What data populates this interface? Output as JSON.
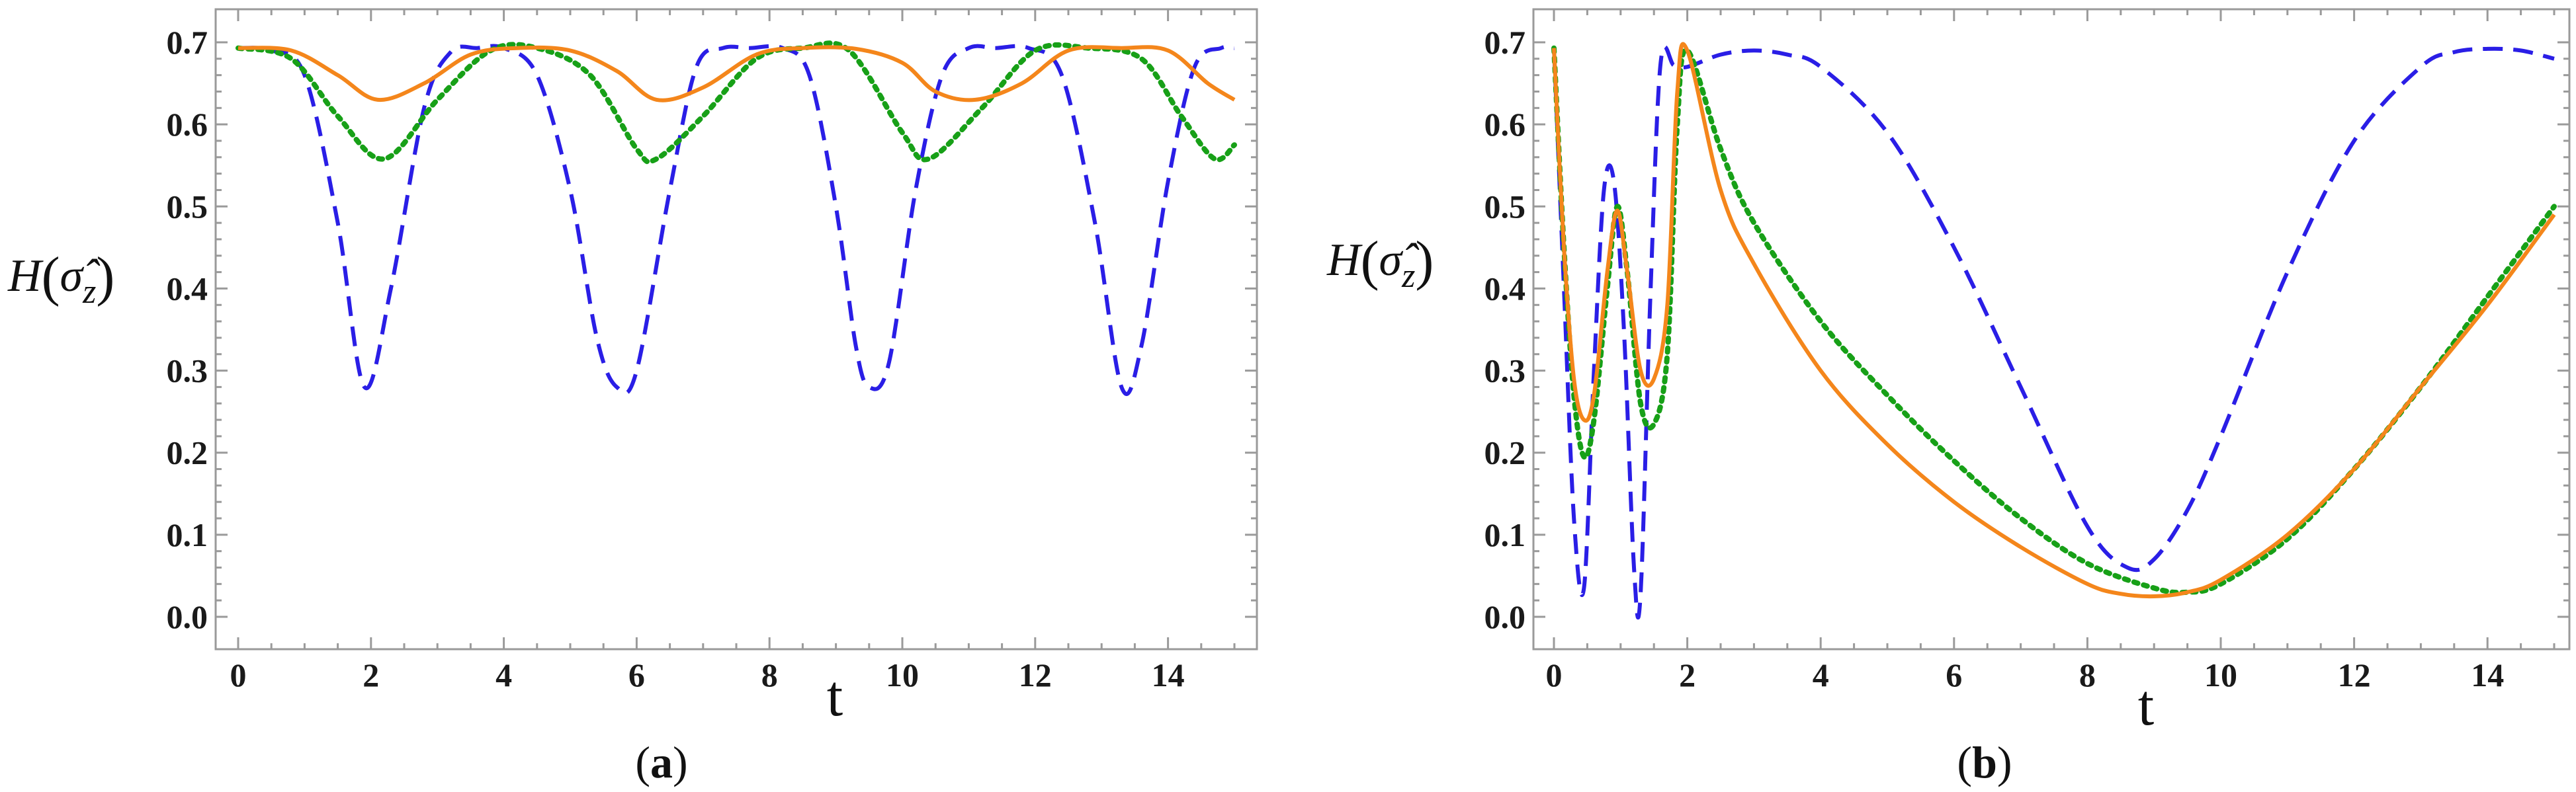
{
  "chart_data": [
    {
      "type": "line",
      "panel": "a",
      "caption": "(a)",
      "caption_letter": "a",
      "xlabel": "t",
      "ylabel": "H(σ̂z)",
      "ylabel_main": "H",
      "ylabel_sigma": "σ̂",
      "ylabel_sub": "z",
      "xlim": [
        0,
        15
      ],
      "ylim": [
        0,
        0.7
      ],
      "xticks": [
        0,
        2,
        4,
        6,
        8,
        10,
        12,
        14
      ],
      "xtick_labels": [
        "0",
        "2",
        "4",
        "6",
        "8",
        "10",
        "12",
        "14"
      ],
      "yticks": [
        0.0,
        0.1,
        0.2,
        0.3,
        0.4,
        0.5,
        0.6,
        0.7
      ],
      "ytick_labels": [
        "0.0",
        "0.1",
        "0.2",
        "0.3",
        "0.4",
        "0.5",
        "0.6",
        "0.7"
      ],
      "series": [
        {
          "name": "dashed-blue",
          "color": "#2a1ee6",
          "style": "dashed",
          "x": [
            0,
            0.5,
            1.0,
            1.5,
            1.9,
            2.3,
            2.8,
            3.2,
            3.6,
            4.0,
            4.5,
            5.0,
            5.4,
            5.7,
            6.0,
            6.5,
            6.9,
            7.3,
            7.7,
            8.2,
            8.6,
            9.0,
            9.3,
            9.5,
            9.8,
            10.2,
            10.6,
            11.0,
            11.4,
            11.9,
            12.4,
            12.9,
            13.3,
            13.6,
            14.0,
            14.4,
            14.8,
            15.0
          ],
          "y": [
            0.693,
            0.69,
            0.66,
            0.48,
            0.28,
            0.4,
            0.62,
            0.688,
            0.693,
            0.693,
            0.66,
            0.52,
            0.34,
            0.28,
            0.3,
            0.52,
            0.67,
            0.693,
            0.693,
            0.693,
            0.66,
            0.5,
            0.33,
            0.28,
            0.31,
            0.52,
            0.66,
            0.693,
            0.693,
            0.693,
            0.66,
            0.48,
            0.28,
            0.33,
            0.53,
            0.67,
            0.693,
            0.693
          ]
        },
        {
          "name": "dotted-green",
          "color": "#17a017",
          "style": "dotted",
          "x": [
            0,
            0.8,
            1.5,
            2.2,
            3.0,
            3.8,
            4.5,
            5.3,
            6.0,
            6.3,
            7.0,
            7.8,
            8.5,
            9.2,
            10.0,
            10.4,
            11.2,
            12.0,
            12.8,
            13.6,
            14.2,
            14.7,
            15.0
          ],
          "y": [
            0.693,
            0.68,
            0.61,
            0.558,
            0.63,
            0.69,
            0.693,
            0.66,
            0.57,
            0.558,
            0.61,
            0.68,
            0.693,
            0.69,
            0.59,
            0.558,
            0.62,
            0.69,
            0.693,
            0.68,
            0.61,
            0.558,
            0.575
          ]
        },
        {
          "name": "solid-orange",
          "color": "#f4861b",
          "style": "solid",
          "x": [
            0,
            0.8,
            1.5,
            2.1,
            2.8,
            3.5,
            4.2,
            5.0,
            5.7,
            6.3,
            7.0,
            7.8,
            8.5,
            9.3,
            10.0,
            10.5,
            11.1,
            11.8,
            12.5,
            13.3,
            14.0,
            14.6,
            15.0
          ],
          "y": [
            0.693,
            0.69,
            0.66,
            0.63,
            0.65,
            0.685,
            0.693,
            0.69,
            0.665,
            0.63,
            0.645,
            0.685,
            0.693,
            0.692,
            0.675,
            0.64,
            0.63,
            0.65,
            0.69,
            0.693,
            0.69,
            0.65,
            0.63
          ]
        }
      ]
    },
    {
      "type": "line",
      "panel": "b",
      "caption": "(b)",
      "caption_letter": "b",
      "xlabel": "t",
      "ylabel": "H(σ̂z)",
      "ylabel_main": "H",
      "ylabel_sigma": "σ̂",
      "ylabel_sub": "z",
      "xlim": [
        0,
        15
      ],
      "ylim": [
        0,
        0.7
      ],
      "xticks": [
        0,
        2,
        4,
        6,
        8,
        10,
        12,
        14
      ],
      "xtick_labels": [
        "0",
        "2",
        "4",
        "6",
        "8",
        "10",
        "12",
        "14"
      ],
      "yticks": [
        0.0,
        0.1,
        0.2,
        0.3,
        0.4,
        0.5,
        0.6,
        0.7
      ],
      "ytick_labels": [
        "0.0",
        "0.1",
        "0.2",
        "0.3",
        "0.4",
        "0.5",
        "0.6",
        "0.7"
      ],
      "series": [
        {
          "name": "dashed-blue",
          "color": "#2a1ee6",
          "style": "dashed",
          "x": [
            0,
            0.15,
            0.3,
            0.45,
            0.6,
            0.75,
            0.9,
            1.05,
            1.2,
            1.3,
            1.45,
            1.6,
            1.8,
            2.0,
            2.5,
            3.0,
            3.5,
            4.0,
            5.0,
            6.0,
            7.0,
            8.0,
            8.6,
            9.0,
            9.5,
            10.0,
            11.0,
            12.0,
            13.0,
            13.5,
            14.0,
            14.5,
            15.0
          ],
          "y": [
            0.693,
            0.4,
            0.12,
            0.035,
            0.3,
            0.52,
            0.53,
            0.35,
            0.06,
            0.028,
            0.4,
            0.675,
            0.672,
            0.67,
            0.685,
            0.69,
            0.685,
            0.67,
            0.59,
            0.45,
            0.28,
            0.11,
            0.06,
            0.07,
            0.13,
            0.22,
            0.42,
            0.58,
            0.67,
            0.688,
            0.692,
            0.69,
            0.68
          ]
        },
        {
          "name": "dotted-green",
          "color": "#17a017",
          "style": "dotted",
          "x": [
            0,
            0.15,
            0.3,
            0.45,
            0.6,
            0.8,
            0.95,
            1.1,
            1.3,
            1.5,
            1.7,
            1.85,
            2.0,
            2.5,
            3.0,
            4.0,
            5.0,
            6.0,
            7.0,
            8.0,
            9.0,
            9.5,
            10.0,
            11.0,
            12.0,
            13.0,
            14.0,
            15.0
          ],
          "y": [
            0.693,
            0.45,
            0.27,
            0.195,
            0.24,
            0.4,
            0.5,
            0.42,
            0.26,
            0.235,
            0.32,
            0.6,
            0.69,
            0.57,
            0.48,
            0.36,
            0.27,
            0.19,
            0.12,
            0.065,
            0.035,
            0.03,
            0.04,
            0.095,
            0.18,
            0.28,
            0.39,
            0.5
          ]
        },
        {
          "name": "solid-orange",
          "color": "#f4861b",
          "style": "solid",
          "x": [
            0,
            0.15,
            0.3,
            0.45,
            0.6,
            0.8,
            0.95,
            1.1,
            1.3,
            1.5,
            1.7,
            1.85,
            2.0,
            2.5,
            3.0,
            4.0,
            5.0,
            6.0,
            7.0,
            8.0,
            8.5,
            9.0,
            9.5,
            10.0,
            11.0,
            12.0,
            13.0,
            14.0,
            15.0
          ],
          "y": [
            0.693,
            0.45,
            0.29,
            0.24,
            0.27,
            0.42,
            0.495,
            0.42,
            0.3,
            0.29,
            0.38,
            0.64,
            0.69,
            0.52,
            0.43,
            0.3,
            0.21,
            0.14,
            0.085,
            0.04,
            0.028,
            0.025,
            0.03,
            0.045,
            0.1,
            0.18,
            0.28,
            0.38,
            0.49
          ]
        }
      ]
    }
  ]
}
